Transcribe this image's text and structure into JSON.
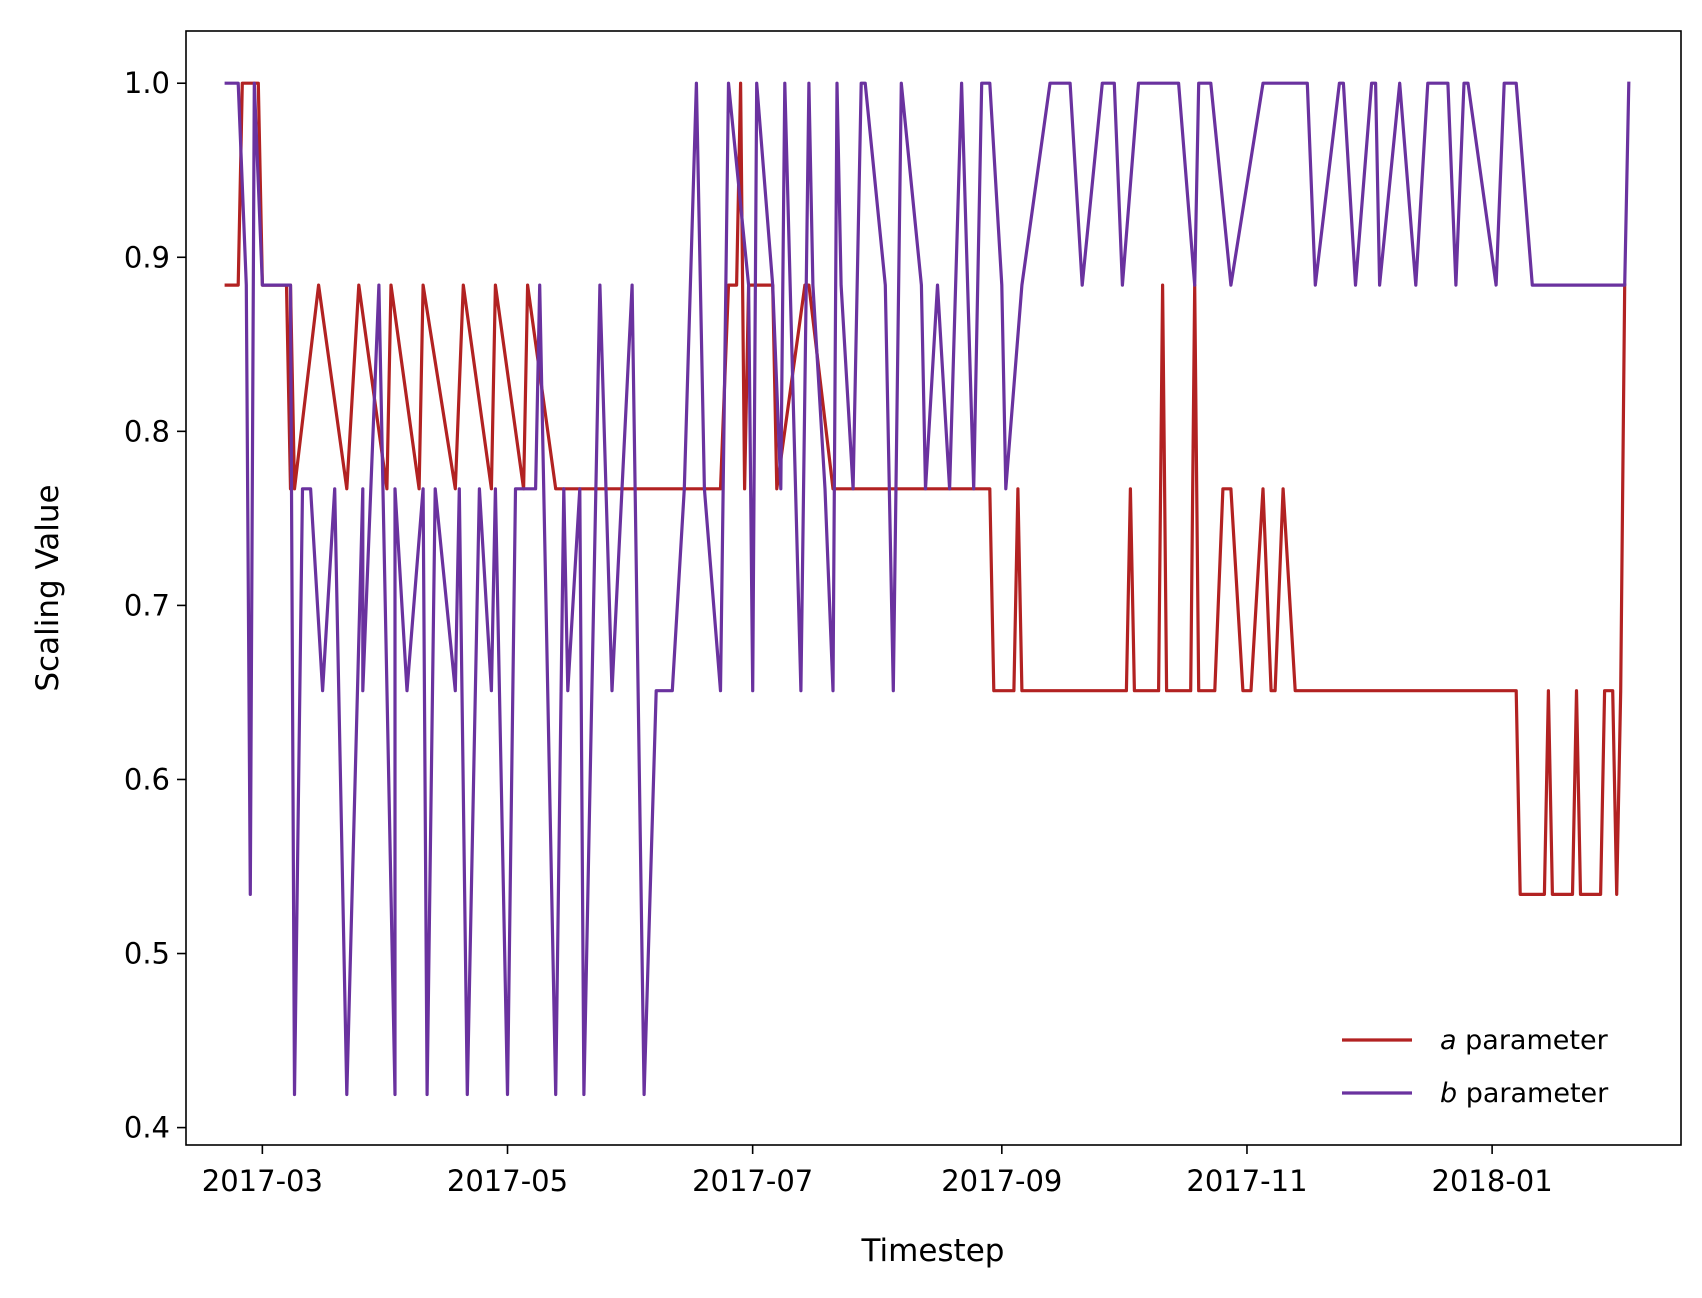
{
  "chart_data": {
    "type": "line",
    "xlabel": "Timestep",
    "ylabel": "Scaling Value",
    "x_range": [
      "2017-02-10",
      "2018-02-17"
    ],
    "ylim": [
      0.39,
      1.03
    ],
    "x_ticks": [
      {
        "date": "2017-03-01",
        "label": "2017-03"
      },
      {
        "date": "2017-05-01",
        "label": "2017-05"
      },
      {
        "date": "2017-07-01",
        "label": "2017-07"
      },
      {
        "date": "2017-09-01",
        "label": "2017-09"
      },
      {
        "date": "2017-11-01",
        "label": "2017-11"
      },
      {
        "date": "2018-01-01",
        "label": "2018-01"
      }
    ],
    "y_ticks": [
      {
        "value": 0.4,
        "label": "0.4"
      },
      {
        "value": 0.5,
        "label": "0.5"
      },
      {
        "value": 0.6,
        "label": "0.6"
      },
      {
        "value": 0.7,
        "label": "0.7"
      },
      {
        "value": 0.8,
        "label": "0.8"
      },
      {
        "value": 0.9,
        "label": "0.9"
      },
      {
        "value": 1.0,
        "label": "1.0"
      }
    ],
    "legend_position": "lower-right",
    "series": [
      {
        "name": "a parameter",
        "legend_symbol": "a",
        "legend_suffix": " parameter",
        "color": "#b22222",
        "x": [
          "2017-02-20",
          "2017-02-23",
          "2017-02-24",
          "2017-02-28",
          "2017-03-01",
          "2017-03-07",
          "2017-03-08",
          "2017-03-08",
          "2017-03-09",
          "2017-03-15",
          "2017-03-22",
          "2017-03-25",
          "2017-04-01",
          "2017-04-02",
          "2017-04-09",
          "2017-04-10",
          "2017-04-18",
          "2017-04-20",
          "2017-04-27",
          "2017-04-28",
          "2017-05-05",
          "2017-05-06",
          "2017-05-13",
          "2017-05-14",
          "2017-06-23",
          "2017-06-25",
          "2017-06-27",
          "2017-06-28",
          "2017-06-29",
          "2017-06-30",
          "2017-07-06",
          "2017-07-07",
          "2017-07-14",
          "2017-07-15",
          "2017-07-21",
          "2017-07-22",
          "2017-08-29",
          "2017-08-30",
          "2017-09-04",
          "2017-09-05",
          "2017-09-06",
          "2017-09-07",
          "2017-10-02",
          "2017-10-03",
          "2017-10-04",
          "2017-10-10",
          "2017-10-11",
          "2017-10-12",
          "2017-10-18",
          "2017-10-19",
          "2017-10-20",
          "2017-10-24",
          "2017-10-26",
          "2017-10-28",
          "2017-10-31",
          "2017-11-02",
          "2017-11-05",
          "2017-11-07",
          "2017-11-08",
          "2017-11-10",
          "2017-11-13",
          "2017-11-14",
          "2017-11-15",
          "2018-01-07",
          "2018-01-08",
          "2018-01-14",
          "2018-01-15",
          "2018-01-16",
          "2018-01-21",
          "2018-01-22",
          "2018-01-23",
          "2018-01-28",
          "2018-01-29",
          "2018-01-31",
          "2018-02-01",
          "2018-02-02",
          "2018-02-03"
        ],
        "y": [
          0.884,
          0.884,
          1.0,
          1.0,
          0.884,
          0.884,
          0.767,
          0.884,
          0.767,
          0.884,
          0.767,
          0.884,
          0.767,
          0.884,
          0.767,
          0.884,
          0.767,
          0.884,
          0.767,
          0.884,
          0.767,
          0.884,
          0.767,
          0.767,
          0.767,
          0.884,
          0.884,
          1.0,
          0.767,
          0.884,
          0.884,
          0.767,
          0.884,
          0.884,
          0.767,
          0.767,
          0.767,
          0.651,
          0.651,
          0.767,
          0.651,
          0.651,
          0.651,
          0.767,
          0.651,
          0.651,
          0.884,
          0.651,
          0.651,
          0.884,
          0.651,
          0.651,
          0.767,
          0.767,
          0.651,
          0.651,
          0.767,
          0.651,
          0.651,
          0.767,
          0.651,
          0.651,
          0.651,
          0.651,
          0.534,
          0.534,
          0.651,
          0.534,
          0.534,
          0.651,
          0.534,
          0.534,
          0.651,
          0.651,
          0.534,
          0.651,
          0.884
        ]
      },
      {
        "name": "b parameter",
        "legend_symbol": "b",
        "legend_suffix": " parameter",
        "color": "#6a329f",
        "x": [
          "2017-02-20",
          "2017-02-23",
          "2017-02-25",
          "2017-02-26",
          "2017-02-27",
          "2017-03-01",
          "2017-03-02",
          "2017-03-08",
          "2017-03-09",
          "2017-03-11",
          "2017-03-13",
          "2017-03-16",
          "2017-03-16",
          "2017-03-19",
          "2017-03-22",
          "2017-03-26",
          "2017-03-26",
          "2017-03-30",
          "2017-04-03",
          "2017-04-03",
          "2017-04-06",
          "2017-04-10",
          "2017-04-11",
          "2017-04-13",
          "2017-04-18",
          "2017-04-19",
          "2017-04-21",
          "2017-04-24",
          "2017-04-27",
          "2017-04-28",
          "2017-05-01",
          "2017-05-03",
          "2017-05-08",
          "2017-05-09",
          "2017-05-13",
          "2017-05-15",
          "2017-05-16",
          "2017-05-19",
          "2017-05-20",
          "2017-05-24",
          "2017-05-27",
          "2017-06-01",
          "2017-06-04",
          "2017-06-07",
          "2017-06-09",
          "2017-06-11",
          "2017-06-14",
          "2017-06-17",
          "2017-06-19",
          "2017-06-23",
          "2017-06-25",
          "2017-06-30",
          "2017-07-01",
          "2017-07-02",
          "2017-07-06",
          "2017-07-08",
          "2017-07-09",
          "2017-07-13",
          "2017-07-15",
          "2017-07-16",
          "2017-07-19",
          "2017-07-21",
          "2017-07-22",
          "2017-07-23",
          "2017-07-26",
          "2017-07-28",
          "2017-07-29",
          "2017-08-03",
          "2017-08-05",
          "2017-08-07",
          "2017-08-12",
          "2017-08-13",
          "2017-08-16",
          "2017-08-19",
          "2017-08-22",
          "2017-08-25",
          "2017-08-27",
          "2017-08-29",
          "2017-09-01",
          "2017-09-02",
          "2017-09-06",
          "2017-09-13",
          "2017-09-15",
          "2017-09-18",
          "2017-09-21",
          "2017-09-26",
          "2017-09-29",
          "2017-10-01",
          "2017-10-05",
          "2017-10-14",
          "2017-10-15",
          "2017-10-19",
          "2017-10-20",
          "2017-10-23",
          "2017-10-28",
          "2017-11-05",
          "2017-11-15",
          "2017-11-16",
          "2017-11-18",
          "2017-11-24",
          "2017-11-25",
          "2017-11-28",
          "2017-12-02",
          "2017-12-03",
          "2017-12-04",
          "2017-12-09",
          "2017-12-13",
          "2017-12-16",
          "2017-12-21",
          "2017-12-23",
          "2017-12-25",
          "2017-12-26",
          "2018-01-02",
          "2018-01-04",
          "2018-01-07",
          "2018-01-11",
          "2018-01-12",
          "2018-02-03",
          "2018-02-04"
        ],
        "y": [
          1.0,
          1.0,
          0.884,
          0.534,
          1.0,
          0.884,
          0.884,
          0.884,
          0.419,
          0.767,
          0.767,
          0.651,
          0.651,
          0.767,
          0.419,
          0.767,
          0.651,
          0.884,
          0.419,
          0.767,
          0.651,
          0.767,
          0.419,
          0.767,
          0.651,
          0.767,
          0.419,
          0.767,
          0.651,
          0.767,
          0.419,
          0.767,
          0.767,
          0.884,
          0.419,
          0.767,
          0.651,
          0.767,
          0.419,
          0.884,
          0.651,
          0.884,
          0.419,
          0.651,
          0.651,
          0.651,
          0.767,
          1.0,
          0.767,
          0.651,
          1.0,
          0.884,
          0.651,
          1.0,
          0.884,
          0.767,
          1.0,
          0.651,
          1.0,
          0.884,
          0.767,
          0.651,
          1.0,
          0.884,
          0.767,
          1.0,
          1.0,
          0.884,
          0.651,
          1.0,
          0.884,
          0.767,
          0.884,
          0.767,
          1.0,
          0.767,
          1.0,
          1.0,
          0.884,
          0.767,
          0.884,
          1.0,
          1.0,
          1.0,
          0.884,
          1.0,
          1.0,
          0.884,
          1.0,
          1.0,
          1.0,
          0.884,
          1.0,
          1.0,
          0.884,
          1.0,
          1.0,
          1.0,
          0.884,
          1.0,
          1.0,
          0.884,
          1.0,
          1.0,
          0.884,
          1.0,
          0.884,
          1.0,
          1.0,
          0.884,
          1.0,
          1.0,
          0.884,
          1.0,
          1.0,
          0.884,
          0.884,
          0.884,
          1.0
        ]
      }
    ]
  }
}
